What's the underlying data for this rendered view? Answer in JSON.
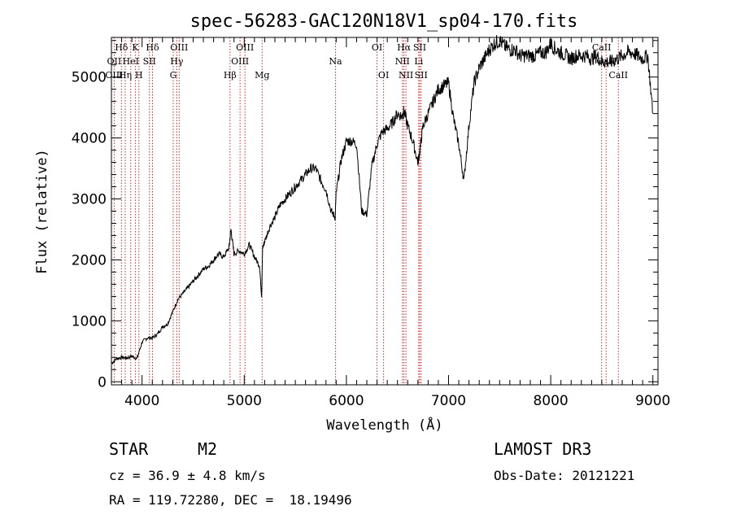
{
  "chart_data": {
    "type": "line",
    "title": "spec-56283-GAC120N18V1_sp04-170.fits",
    "xlabel": "Wavelength (Å)",
    "ylabel": "Flux (relative)",
    "xlim": [
      3700,
      9050
    ],
    "ylim": [
      -50,
      5650
    ],
    "x_ticks": [
      "4000",
      "5000",
      "6000",
      "7000",
      "8000",
      "9000"
    ],
    "x_tick_values": [
      4000,
      5000,
      6000,
      7000,
      8000,
      9000
    ],
    "y_ticks": [
      "0",
      "1000",
      "2000",
      "3000",
      "4000",
      "5000"
    ],
    "y_tick_values": [
      0,
      1000,
      2000,
      3000,
      4000,
      5000
    ],
    "series": [
      {
        "name": "spectrum",
        "color": "#000000",
        "x": [
          3700,
          3750,
          3800,
          3850,
          3900,
          3950,
          4000,
          4050,
          4100,
          4150,
          4200,
          4250,
          4300,
          4350,
          4400,
          4450,
          4500,
          4550,
          4600,
          4650,
          4700,
          4750,
          4800,
          4850,
          4870,
          4900,
          4950,
          5000,
          5050,
          5100,
          5150,
          5170,
          5180,
          5200,
          5250,
          5300,
          5350,
          5400,
          5450,
          5500,
          5550,
          5600,
          5650,
          5700,
          5750,
          5800,
          5850,
          5890,
          5900,
          5950,
          6000,
          6050,
          6100,
          6150,
          6200,
          6250,
          6300,
          6350,
          6400,
          6450,
          6500,
          6550,
          6563,
          6600,
          6650,
          6700,
          6720,
          6750,
          6800,
          6850,
          6900,
          6950,
          7000,
          7050,
          7100,
          7150,
          7200,
          7250,
          7300,
          7350,
          7400,
          7450,
          7500,
          7550,
          7600,
          7650,
          7700,
          7750,
          7800,
          7850,
          7900,
          7950,
          8000,
          8050,
          8100,
          8150,
          8200,
          8250,
          8300,
          8350,
          8400,
          8450,
          8500,
          8550,
          8600,
          8650,
          8700,
          8750,
          8800,
          8850,
          8900,
          8950,
          9000
        ],
        "y": [
          300,
          380,
          400,
          390,
          420,
          380,
          650,
          720,
          720,
          780,
          900,
          950,
          1150,
          1350,
          1450,
          1550,
          1650,
          1750,
          1850,
          1900,
          2000,
          2100,
          2050,
          2200,
          2500,
          2100,
          2150,
          2100,
          2250,
          2050,
          1900,
          1400,
          2200,
          2300,
          2550,
          2700,
          2900,
          3000,
          3100,
          3200,
          3300,
          3400,
          3500,
          3500,
          3300,
          3150,
          2800,
          2700,
          3100,
          3650,
          3950,
          3950,
          3900,
          2800,
          2750,
          3550,
          3900,
          4100,
          4150,
          4250,
          4400,
          4350,
          4450,
          4200,
          3950,
          3600,
          3800,
          4200,
          4400,
          4600,
          4800,
          4850,
          4900,
          4300,
          3900,
          3300,
          4200,
          4900,
          5150,
          5300,
          5450,
          5550,
          5600,
          5500,
          5450,
          5450,
          5350,
          5350,
          5350,
          5350,
          5400,
          5400,
          5550,
          5450,
          5400,
          5350,
          5300,
          5350,
          5350,
          5350,
          5300,
          5350,
          5250,
          5250,
          5250,
          5300,
          5350,
          5400,
          5400,
          5350,
          5300,
          5350,
          4400
        ]
      }
    ],
    "spectral_lines": [
      {
        "label": "Hδ",
        "wavelength": 3798,
        "row": 1
      },
      {
        "label": "K",
        "wavelength": 3934,
        "row": 1
      },
      {
        "label": "Hδ",
        "wavelength": 4102,
        "row": 1
      },
      {
        "label": "OIII",
        "wavelength": 4363,
        "row": 1
      },
      {
        "label": "OIII",
        "wavelength": 5007,
        "row": 1
      },
      {
        "label": "OI",
        "wavelength": 6300,
        "row": 1
      },
      {
        "label": "Hα",
        "wavelength": 6563,
        "row": 1
      },
      {
        "label": "SII",
        "wavelength": 6717,
        "row": 1
      },
      {
        "label": "CaII",
        "wavelength": 8498,
        "row": 1
      },
      {
        "label": "OII",
        "wavelength": 3727,
        "row": 2
      },
      {
        "label": "HeI",
        "wavelength": 3889,
        "row": 2
      },
      {
        "label": "SII",
        "wavelength": 4072,
        "row": 2
      },
      {
        "label": "Hγ",
        "wavelength": 4340,
        "row": 2
      },
      {
        "label": "OIII",
        "wavelength": 4959,
        "row": 2
      },
      {
        "label": "Na",
        "wavelength": 5893,
        "row": 2
      },
      {
        "label": "NII",
        "wavelength": 6548,
        "row": 2
      },
      {
        "label": "Li",
        "wavelength": 6708,
        "row": 2
      },
      {
        "label": "CaII",
        "wavelength": 8542,
        "row": 2
      },
      {
        "label": "OIII",
        "wavelength": 3727,
        "row": 3
      },
      {
        "label": "Hη",
        "wavelength": 3835,
        "row": 3
      },
      {
        "label": "H",
        "wavelength": 3969,
        "row": 3
      },
      {
        "label": "G",
        "wavelength": 4305,
        "row": 3
      },
      {
        "label": "Hβ",
        "wavelength": 4861,
        "row": 3
      },
      {
        "label": "Mg",
        "wavelength": 5175,
        "row": 3
      },
      {
        "label": "OI",
        "wavelength": 6364,
        "row": 3
      },
      {
        "label": "NII",
        "wavelength": 6583,
        "row": 3
      },
      {
        "label": "SII",
        "wavelength": 6731,
        "row": 3
      },
      {
        "label": "CaII",
        "wavelength": 8662,
        "row": 3
      }
    ],
    "line_color": "#cc2a2a"
  },
  "info": {
    "class_label": "STAR",
    "subclass": "M2",
    "survey": "LAMOST DR3",
    "redshift": "cz = 36.9 ± 4.8 km/s",
    "obs_date": "Obs-Date: 20121221",
    "coords": "RA = 119.72280, DEC =  18.19496"
  }
}
